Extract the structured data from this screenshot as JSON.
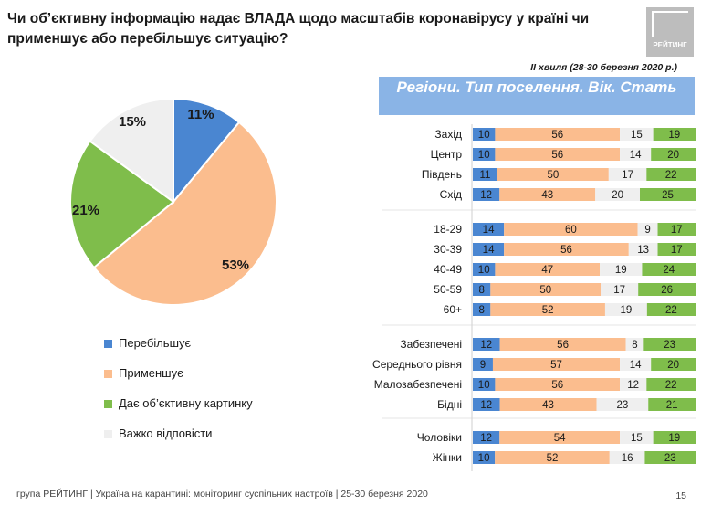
{
  "title": "Чи об’єктивну інформацію надає ВЛАДА щодо масштабів коронавірусу у країні чи применшує або перебільшує ситуацію?",
  "logo_text": "РЕЙТИНГ",
  "wave": "ІІ хвиля (28-30 березня 2020 р.)",
  "banner": "Регіони. Тип поселення. Вік. Стать",
  "footer": "група РЕЙТИНГ  |  Україна на карантині: моніторинг суспільних настроїв  |  25-30 березня 2020",
  "page_number": "15",
  "colors": {
    "exaggerates": "#4a86d1",
    "understates": "#fbbd8e",
    "objective": "#7fbd4b",
    "hard_to_say": "#efefef"
  },
  "chart_data": [
    {
      "type": "pie",
      "legend_position": "below-left",
      "slices": [
        {
          "label": "Перебільшує",
          "value": 11,
          "text": "11%",
          "color": "#4a86d1"
        },
        {
          "label": "Применшує",
          "value": 53,
          "text": "53%",
          "color": "#fbbd8e"
        },
        {
          "label": "Дає об’єктивну картинку",
          "value": 21,
          "text": "21%",
          "color": "#7fbd4b"
        },
        {
          "label": "Важко відповісти",
          "value": 15,
          "text": "15%",
          "color": "#efefef"
        }
      ]
    },
    {
      "type": "bar",
      "stacked": true,
      "orientation": "horizontal",
      "series": [
        {
          "name": "Перебільшує",
          "color": "#4a86d1"
        },
        {
          "name": "Применшує",
          "color": "#fbbd8e"
        },
        {
          "name": "Важко відповісти",
          "color": "#efefef"
        },
        {
          "name": "Дає об’єктивну картинку",
          "color": "#7fbd4b"
        }
      ],
      "groups": [
        {
          "rows": [
            {
              "label": "Захід",
              "values": [
                10,
                56,
                15,
                19
              ]
            },
            {
              "label": "Центр",
              "values": [
                10,
                56,
                14,
                20
              ]
            },
            {
              "label": "Південь",
              "values": [
                11,
                50,
                17,
                22
              ]
            },
            {
              "label": "Схід",
              "values": [
                12,
                43,
                20,
                25
              ]
            }
          ]
        },
        {
          "rows": [
            {
              "label": "18-29",
              "values": [
                14,
                60,
                9,
                17
              ]
            },
            {
              "label": "30-39",
              "values": [
                14,
                56,
                13,
                17
              ]
            },
            {
              "label": "40-49",
              "values": [
                10,
                47,
                19,
                24
              ]
            },
            {
              "label": "50-59",
              "values": [
                8,
                50,
                17,
                26
              ]
            },
            {
              "label": "60+",
              "values": [
                8,
                52,
                19,
                22
              ]
            }
          ]
        },
        {
          "rows": [
            {
              "label": "Забезпечені",
              "values": [
                12,
                56,
                8,
                23
              ]
            },
            {
              "label": "Середнього рівня",
              "values": [
                9,
                57,
                14,
                20
              ]
            },
            {
              "label": "Малозабезпечені",
              "values": [
                10,
                56,
                12,
                22
              ]
            },
            {
              "label": "Бідні",
              "values": [
                12,
                43,
                23,
                21
              ]
            }
          ]
        },
        {
          "rows": [
            {
              "label": "Чоловіки",
              "values": [
                12,
                54,
                15,
                19
              ]
            },
            {
              "label": "Жінки",
              "values": [
                10,
                52,
                16,
                23
              ]
            }
          ]
        }
      ]
    }
  ]
}
